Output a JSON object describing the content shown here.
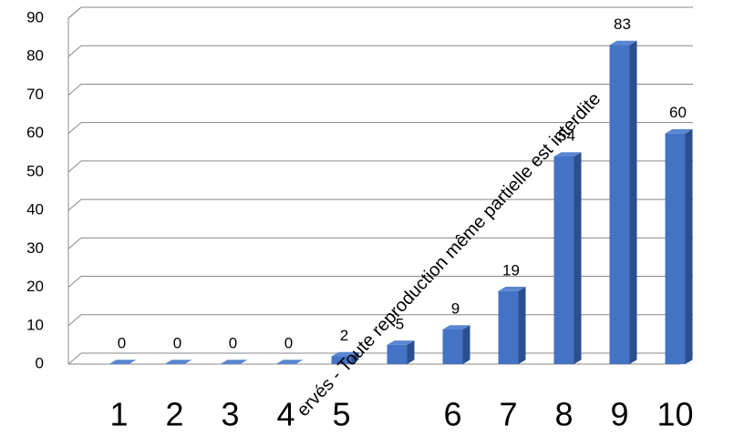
{
  "chart_data": {
    "type": "bar",
    "categories": [
      "1",
      "2",
      "3",
      "4",
      "5",
      null,
      "6",
      "7",
      "8",
      "9",
      "10"
    ],
    "values": [
      0,
      0,
      0,
      0,
      2,
      5,
      9,
      19,
      54,
      83,
      60
    ],
    "color": "#4472c4",
    "ylim": [
      0,
      90
    ],
    "yticks": [
      0,
      10,
      20,
      30,
      40,
      50,
      60,
      70,
      80,
      90
    ],
    "grid": true,
    "watermark": "ervés - Toute reproduction même partielle est interdite"
  }
}
